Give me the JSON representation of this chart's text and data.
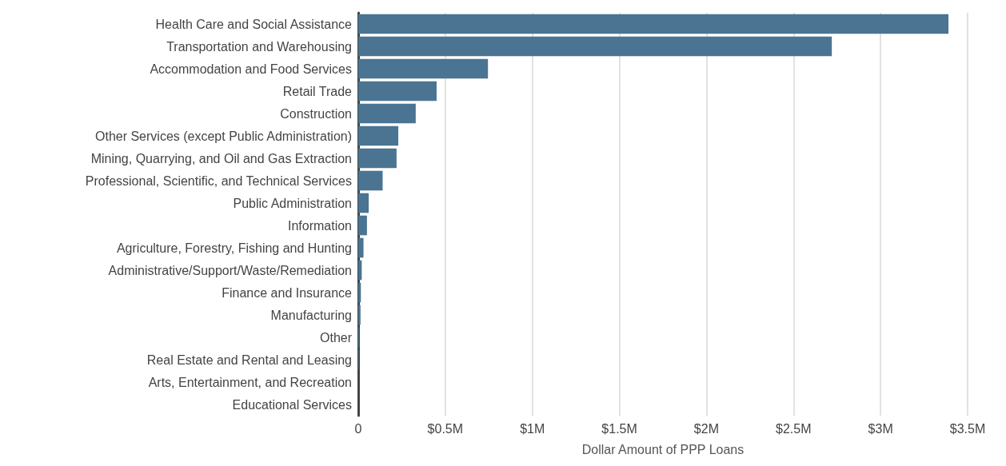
{
  "chart_data": {
    "type": "bar",
    "orientation": "horizontal",
    "xlabel": "Dollar Amount of PPP Loans",
    "categories": [
      "Health Care and Social Assistance",
      "Transportation and Warehousing",
      "Accommodation and Food Services",
      "Retail Trade",
      "Construction",
      "Other Services (except Public Administration)",
      "Mining, Quarrying, and Oil and Gas Extraction",
      "Professional, Scientific, and Technical Services",
      "Public Administration",
      "Information",
      "Agriculture, Forestry, Fishing and Hunting",
      "Administrative/Support/Waste/Remediation",
      "Finance and Insurance",
      "Manufacturing",
      "Other",
      "Real Estate and Rental and Leasing",
      "Arts, Entertainment, and Recreation",
      "Educational Services"
    ],
    "values": [
      3.39,
      2.72,
      0.745,
      0.45,
      0.33,
      0.23,
      0.22,
      0.14,
      0.06,
      0.05,
      0.03,
      0.02,
      0.015,
      0.013,
      0.005,
      0.003,
      null,
      null
    ],
    "color": "#4a7491",
    "xlim": [
      0,
      3.5
    ],
    "xticks": [
      0,
      {
        "value": 0.5,
        "label": "$0.5M"
      },
      {
        "value": 1,
        "label": "$1M"
      },
      {
        "value": 1.5,
        "label": "$1.5M"
      },
      {
        "value": 2,
        "label": "$2M"
      },
      {
        "value": 2.5,
        "label": "$2.5M"
      },
      {
        "value": 3,
        "label": "$3M"
      },
      {
        "value": 3.5,
        "label": "$3.5M"
      }
    ],
    "grid": "x"
  }
}
